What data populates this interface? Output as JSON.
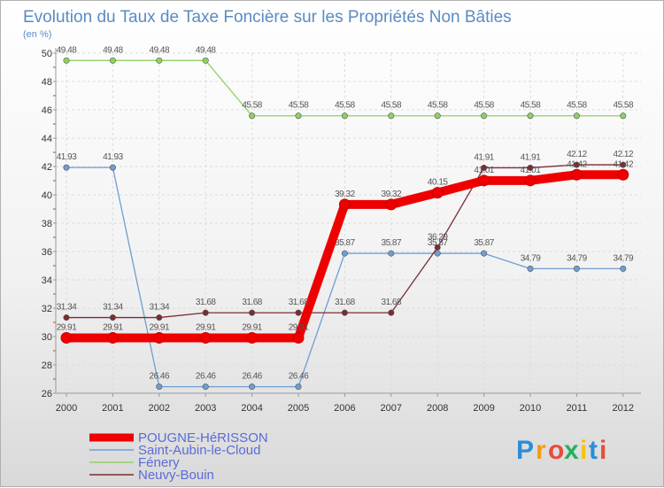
{
  "chart_data": {
    "type": "line",
    "title": "Evolution du Taux de Taxe Foncière sur les Propriétés Non Bâties",
    "unit_label": "(en %)",
    "x": [
      "2000",
      "2001",
      "2002",
      "2003",
      "2004",
      "2005",
      "2006",
      "2007",
      "2008",
      "2009",
      "2010",
      "2011",
      "2012"
    ],
    "ylim": [
      26,
      50
    ],
    "yticks": [
      "26",
      "28",
      "30",
      "32",
      "34",
      "36",
      "38",
      "40",
      "42",
      "44",
      "46",
      "48",
      "50"
    ],
    "grid": true,
    "series": [
      {
        "name": "POUGNE-HéRISSON",
        "color": "#ee0000",
        "values": [
          29.91,
          29.91,
          29.91,
          29.91,
          29.91,
          29.91,
          39.32,
          39.32,
          40.15,
          41.01,
          41.01,
          41.42,
          41.42
        ],
        "labels": [
          "29.91",
          "29.91",
          "29.91",
          "29.91",
          "29.91",
          "29.91",
          "39.32",
          "39.32",
          "40.15",
          "41.01",
          "41.01",
          "41.42",
          "41.42"
        ]
      },
      {
        "name": "Saint-Aubin-le-Cloud",
        "color": "#6f9ed1",
        "values": [
          41.93,
          41.93,
          26.46,
          26.46,
          26.46,
          26.46,
          35.87,
          35.87,
          35.87,
          35.87,
          34.79,
          34.79,
          34.79
        ],
        "labels": [
          "41.93",
          "41.93",
          "26.46",
          "26.46",
          "26.46",
          "26.46",
          "35.87",
          "35.87",
          "35.87",
          "35.87",
          "34.79",
          "34.79",
          "34.79"
        ]
      },
      {
        "name": "Fénery",
        "color": "#8fd163",
        "values": [
          49.48,
          49.48,
          49.48,
          49.48,
          45.58,
          45.58,
          45.58,
          45.58,
          45.58,
          45.58,
          45.58,
          45.58,
          45.58
        ],
        "labels": [
          "49.48",
          "49.48",
          "49.48",
          "49.48",
          "45.58",
          "45.58",
          "45.58",
          "45.58",
          "45.58",
          "45.58",
          "45.58",
          "45.58",
          "45.58"
        ]
      },
      {
        "name": "Neuvy-Bouin",
        "color": "#7a2c32",
        "values": [
          31.34,
          31.34,
          31.34,
          31.68,
          31.68,
          31.68,
          31.68,
          31.68,
          36.29,
          41.91,
          41.91,
          42.12,
          42.12
        ],
        "labels": [
          "31.34",
          "31.34",
          "31.34",
          "31.68",
          "31.68",
          "31.68",
          "31.68",
          "31.68",
          "36.29",
          "41.91",
          "41.91",
          "42.12",
          "42.12"
        ]
      }
    ]
  },
  "logo": {
    "text": "Proxiti",
    "letters": [
      "P",
      "r",
      "o",
      "x",
      "i",
      "t",
      "i"
    ],
    "colors": [
      "#2a8ed6",
      "#f39c12",
      "#e74c3c",
      "#27ae60",
      "#f1c40f",
      "#2a8ed6",
      "#e74c3c"
    ]
  }
}
